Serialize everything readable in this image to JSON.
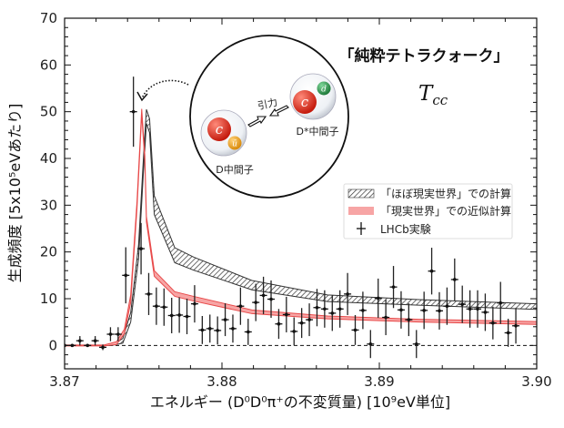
{
  "chart_data": {
    "type": "line",
    "title": "「純粋テトラクォーク」",
    "subtitle": "T_cc",
    "subtitle_main": "T",
    "subtitle_sub": "cc",
    "xlabel": "エネルギー (D⁰D⁰π⁺の不変質量) [10⁹eV単位]",
    "ylabel": "生成頻度 [5x10⁵eVあたり]",
    "xlim": [
      3.87,
      3.9
    ],
    "ylim": [
      -5,
      70
    ],
    "xticks": [
      "3.87",
      "3.88",
      "3.89",
      "3.90"
    ],
    "xtick_values": [
      3.87,
      3.88,
      3.89,
      3.9
    ],
    "yticks": [
      "0",
      "10",
      "20",
      "30",
      "40",
      "50",
      "60",
      "70"
    ],
    "ytick_values": [
      0,
      10,
      20,
      30,
      40,
      50,
      60,
      70
    ],
    "grid": false,
    "legend_position": "right",
    "reference_line": {
      "y": 0,
      "style": "dashed"
    },
    "series": [
      {
        "name": "「ほぼ現実世界」での計算",
        "kind": "band-hatched",
        "color": "#333333",
        "x": [
          3.87,
          3.873,
          3.8737,
          3.8742,
          3.8747,
          3.875,
          3.8752,
          3.8754,
          3.8757,
          3.877,
          3.8782,
          3.8819,
          3.8867,
          3.8925,
          3.9
        ],
        "y": [
          0,
          0,
          1,
          6,
          20,
          38,
          49,
          47,
          30,
          19.3,
          17.5,
          12.9,
          10.1,
          9.2,
          8.3
        ],
        "half_width": [
          0,
          0,
          0.5,
          1,
          1.5,
          1.5,
          1.5,
          1.5,
          2,
          1.6,
          1.4,
          1.0,
          0.7,
          0.6,
          0.6
        ]
      },
      {
        "name": "「現実世界」での近似計算",
        "kind": "band-filled",
        "color": "#e84a4a",
        "fill": "#f7a5a5",
        "x": [
          3.87,
          3.8725,
          3.8733,
          3.8738,
          3.8742,
          3.8746,
          3.8749,
          3.8751,
          3.8752,
          3.8757,
          3.877,
          3.8782,
          3.8819,
          3.8867,
          3.8925,
          3.9
        ],
        "y": [
          0,
          0,
          0.5,
          3,
          10,
          30,
          50,
          40,
          27,
          15.4,
          11,
          10,
          7.2,
          6,
          5.3,
          4.8
        ],
        "half_width": [
          0.1,
          0.1,
          0.3,
          0.5,
          0.8,
          0.8,
          0.6,
          0.6,
          0.6,
          0.6,
          0.5,
          0.5,
          0.4,
          0.3,
          0.3,
          0.3
        ]
      },
      {
        "name": "LHCb実験",
        "kind": "errorbar",
        "color": "#111111",
        "x_start": 3.87,
        "x_step": 0.000486,
        "y": [
          0,
          0,
          1,
          0,
          1,
          -0.4,
          2.4,
          2.4,
          15,
          50,
          20.7,
          11,
          8.4,
          8.2,
          6.4,
          6.5,
          6.2,
          8.9,
          3.3,
          3.6,
          3.2,
          5.5,
          3.6,
          8.4,
          2.9,
          9.2,
          10.7,
          9.9,
          4.6,
          6.6,
          3.0,
          4.8,
          5.5,
          8.1,
          7.8,
          6.9,
          7.8,
          11,
          3.3,
          7.5,
          0.3,
          10.1,
          6.0,
          12.5,
          7.6,
          5.5,
          0.3,
          7.5,
          15.9,
          7.4,
          8.4,
          14.1,
          8.8,
          7.8,
          7.8,
          7.1,
          4.8,
          9.1,
          2.7,
          4.2
        ],
        "yerr": [
          0.3,
          0.3,
          1,
          0.3,
          1,
          0.6,
          1.5,
          1.5,
          6,
          7.5,
          5.5,
          4.5,
          4,
          4,
          3.8,
          3.8,
          3.8,
          4,
          3,
          3,
          3,
          3.5,
          3,
          4,
          2.8,
          4,
          4,
          4,
          3.2,
          3.8,
          3,
          3.2,
          3.5,
          4,
          4,
          3.8,
          4,
          4.5,
          3.2,
          4,
          3,
          4.2,
          3.8,
          4.5,
          4,
          3.5,
          3,
          4,
          5,
          4,
          4,
          4.5,
          4,
          4,
          4,
          4,
          3.5,
          4.5,
          3,
          3.8
        ]
      }
    ],
    "inset": {
      "force_label": "引力",
      "d_meson_label": "D中間子",
      "dstar_meson_label": "D*中間子",
      "quark_c": "c",
      "quark_ubar": "ū",
      "quark_d": "d",
      "colors": {
        "c": "#e0301e",
        "ubar": "#f0a020",
        "d": "#2e9a4e"
      }
    }
  }
}
